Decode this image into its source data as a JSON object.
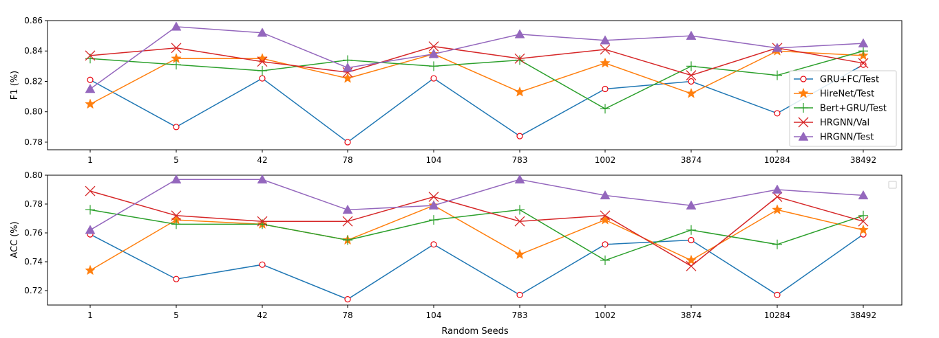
{
  "chart_data": [
    {
      "type": "line",
      "ylabel": "F1 (%)",
      "xlabel": "",
      "categories": [
        "1",
        "5",
        "42",
        "78",
        "104",
        "783",
        "1002",
        "3874",
        "10284",
        "38492"
      ],
      "ylim": [
        0.775,
        0.86
      ],
      "yticks": [
        "0.78",
        "0.80",
        "0.82",
        "0.84",
        "0.86"
      ],
      "legend_position": "right",
      "series": [
        {
          "name": "GRU+FC/Test",
          "color": "#1f77b4",
          "marker": "circle",
          "values": [
            0.821,
            0.79,
            0.822,
            0.78,
            0.822,
            0.784,
            0.815,
            0.82,
            0.799,
            0.831
          ]
        },
        {
          "name": "HireNet/Test",
          "color": "#ff7f0e",
          "marker": "star",
          "values": [
            0.805,
            0.835,
            0.835,
            0.822,
            0.838,
            0.813,
            0.832,
            0.812,
            0.84,
            0.837
          ]
        },
        {
          "name": "Bert+GRU/Test",
          "color": "#2ca02c",
          "marker": "plus",
          "values": [
            0.835,
            0.831,
            0.827,
            0.834,
            0.83,
            0.834,
            0.802,
            0.83,
            0.824,
            0.84
          ]
        },
        {
          "name": "HRGNN/Val",
          "color": "#d62728",
          "marker": "x",
          "values": [
            0.837,
            0.842,
            0.833,
            0.826,
            0.843,
            0.835,
            0.841,
            0.824,
            0.842,
            0.832
          ]
        },
        {
          "name": "HRGNN/Test",
          "color": "#9467bd",
          "marker": "triangle",
          "values": [
            0.815,
            0.856,
            0.852,
            0.829,
            0.838,
            0.851,
            0.847,
            0.85,
            0.842,
            0.845
          ]
        }
      ]
    },
    {
      "type": "line",
      "ylabel": "ACC (%)",
      "xlabel": "Random Seeds",
      "categories": [
        "1",
        "5",
        "42",
        "78",
        "104",
        "783",
        "1002",
        "3874",
        "10284",
        "38492"
      ],
      "ylim": [
        0.71,
        0.8
      ],
      "yticks": [
        "0.72",
        "0.74",
        "0.76",
        "0.78",
        "0.80"
      ],
      "legend_position": "upper right (empty)",
      "series": [
        {
          "name": "GRU+FC/Test",
          "color": "#1f77b4",
          "marker": "circle",
          "values": [
            0.759,
            0.728,
            0.738,
            0.714,
            0.752,
            0.717,
            0.752,
            0.755,
            0.717,
            0.759
          ]
        },
        {
          "name": "HireNet/Test",
          "color": "#ff7f0e",
          "marker": "star",
          "values": [
            0.734,
            0.769,
            0.766,
            0.755,
            0.779,
            0.745,
            0.769,
            0.741,
            0.776,
            0.762
          ]
        },
        {
          "name": "Bert+GRU/Test",
          "color": "#2ca02c",
          "marker": "plus",
          "values": [
            0.776,
            0.766,
            0.766,
            0.755,
            0.769,
            0.776,
            0.741,
            0.762,
            0.752,
            0.772
          ]
        },
        {
          "name": "HRGNN/Val",
          "color": "#d62728",
          "marker": "x",
          "values": [
            0.789,
            0.772,
            0.768,
            0.768,
            0.785,
            0.768,
            0.772,
            0.737,
            0.785,
            0.768
          ]
        },
        {
          "name": "HRGNN/Test",
          "color": "#9467bd",
          "marker": "triangle",
          "values": [
            0.762,
            0.797,
            0.797,
            0.776,
            0.779,
            0.797,
            0.786,
            0.779,
            0.79,
            0.786
          ]
        }
      ]
    }
  ]
}
